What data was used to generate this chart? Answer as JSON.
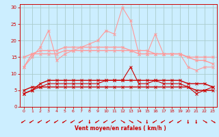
{
  "x": [
    0,
    1,
    2,
    3,
    4,
    5,
    6,
    7,
    8,
    9,
    10,
    11,
    12,
    13,
    14,
    15,
    16,
    17,
    18,
    19,
    20,
    21,
    22,
    23
  ],
  "series": [
    {
      "y": [
        12,
        15,
        18,
        23,
        14,
        16,
        17,
        18,
        19,
        20,
        23,
        22,
        30,
        26,
        16,
        16,
        22,
        16,
        16,
        16,
        12,
        11,
        12,
        12
      ],
      "color": "#ff9999",
      "lw": 0.8,
      "marker": "x",
      "ms": 2.5
    },
    {
      "y": [
        12,
        16,
        17,
        17,
        17,
        18,
        18,
        18,
        18,
        18,
        18,
        18,
        18,
        17,
        16,
        16,
        16,
        16,
        16,
        16,
        15,
        14,
        14,
        13
      ],
      "color": "#ff9999",
      "lw": 1.0,
      "marker": "x",
      "ms": 2.5
    },
    {
      "y": [
        15,
        16,
        16,
        16,
        16,
        17,
        17,
        17,
        17,
        17,
        17,
        17,
        17,
        17,
        17,
        17,
        16,
        16,
        16,
        16,
        15,
        15,
        15,
        15
      ],
      "color": "#ff9999",
      "lw": 1.0,
      "marker": "x",
      "ms": 2.5
    },
    {
      "y": [
        4,
        5,
        6,
        7,
        7,
        7,
        7,
        7,
        7,
        7,
        8,
        8,
        8,
        12,
        7,
        7,
        8,
        7,
        7,
        7,
        6,
        4,
        5,
        6
      ],
      "color": "#cc0000",
      "lw": 0.8,
      "marker": "x",
      "ms": 2.5
    },
    {
      "y": [
        4,
        5,
        7,
        8,
        8,
        8,
        8,
        8,
        8,
        8,
        8,
        8,
        8,
        8,
        8,
        8,
        8,
        8,
        8,
        8,
        7,
        7,
        7,
        6
      ],
      "color": "#cc0000",
      "lw": 1.0,
      "marker": "x",
      "ms": 2.5
    },
    {
      "y": [
        5,
        6,
        6,
        6,
        6,
        6,
        6,
        6,
        6,
        6,
        6,
        6,
        6,
        6,
        6,
        6,
        6,
        6,
        6,
        6,
        6,
        5,
        5,
        5
      ],
      "color": "#cc0000",
      "lw": 1.0,
      "marker": "x",
      "ms": 2.5
    }
  ],
  "arrow_angles_deg": [
    225,
    225,
    225,
    225,
    225,
    225,
    225,
    225,
    270,
    225,
    225,
    225,
    315,
    315,
    315,
    270,
    225,
    225,
    225,
    225,
    270,
    270,
    315,
    315
  ],
  "xlabel": "Vent moyen/en rafales ( km/h )",
  "xlim": [
    -0.5,
    23.5
  ],
  "ylim": [
    0,
    31
  ],
  "yticks": [
    0,
    5,
    10,
    15,
    20,
    25,
    30
  ],
  "xticks": [
    0,
    1,
    2,
    3,
    4,
    5,
    6,
    7,
    8,
    9,
    10,
    11,
    12,
    13,
    14,
    15,
    16,
    17,
    18,
    19,
    20,
    21,
    22,
    23
  ],
  "bg_color": "#cceeff",
  "grid_color": "#aacccc",
  "tick_color": "#cc0000",
  "label_color": "#cc0000",
  "arrow_color": "#cc0000"
}
